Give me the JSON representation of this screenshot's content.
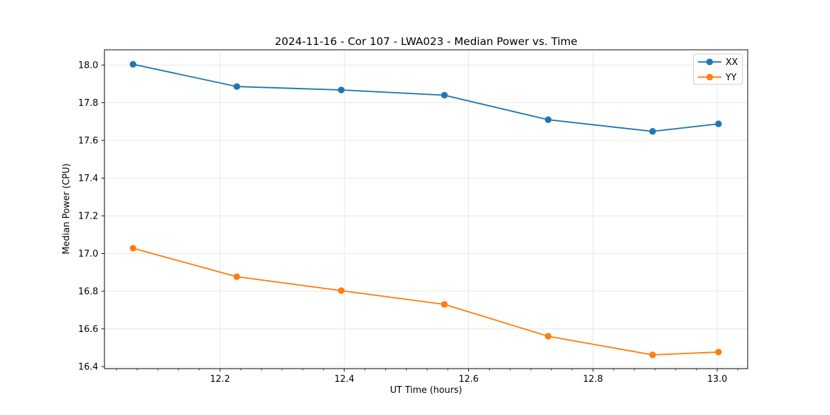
{
  "figure": {
    "background": "#ffffff"
  },
  "chart_data": {
    "type": "line",
    "title": "2024-11-16 - Cor 107 - LWA023 - Median Power vs. Time",
    "xlabel": "UT Time (hours)",
    "ylabel": "Median Power (CPU)",
    "x": [
      12.06,
      12.227,
      12.395,
      12.561,
      12.728,
      12.896,
      13.002
    ],
    "series": [
      {
        "name": "XX",
        "color": "#1f77b4",
        "values": [
          18.004,
          17.886,
          17.868,
          17.84,
          17.71,
          17.648,
          17.688
        ]
      },
      {
        "name": "YY",
        "color": "#ff7f0e",
        "values": [
          17.028,
          16.877,
          16.803,
          16.73,
          16.561,
          16.462,
          16.477
        ]
      }
    ],
    "xlim": [
      12.014,
      13.049
    ],
    "ylim": [
      16.389,
      18.081
    ],
    "xticks": [
      12.2,
      12.4,
      12.6,
      12.8,
      13.0
    ],
    "yticks": [
      16.4,
      16.6,
      16.8,
      17.0,
      17.2,
      17.4,
      17.6,
      17.8,
      18.0
    ],
    "x_minor_step": 0.033333,
    "grid": true,
    "grid_color": "#e4e4e4",
    "spine_color": "#000000",
    "legend": {
      "position": "upper right",
      "entries": [
        "XX",
        "YY"
      ]
    }
  }
}
